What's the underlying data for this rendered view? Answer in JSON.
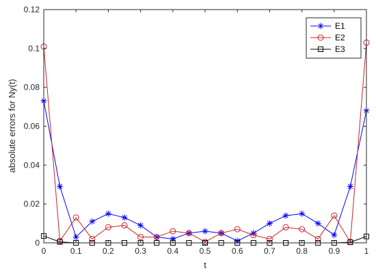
{
  "chart_data": {
    "type": "line",
    "title": "",
    "xlabel": "t",
    "ylabel": "absolute errors for Ny(t)",
    "xlim": [
      0,
      1
    ],
    "ylim": [
      0,
      0.12
    ],
    "x_ticks": [
      0,
      0.1,
      0.2,
      0.3,
      0.4,
      0.5,
      0.6,
      0.7,
      0.8,
      0.9,
      1
    ],
    "x_tick_labels": [
      "0",
      "0.1",
      "0.2",
      "0.3",
      "0.4",
      "0.5",
      "0.6",
      "0.7",
      "0.8",
      "0.9",
      "1"
    ],
    "y_ticks": [
      0,
      0.02,
      0.04,
      0.06,
      0.08,
      0.1,
      0.12
    ],
    "y_tick_labels": [
      "0",
      "0.02",
      "0.04",
      "0.06",
      "0.08",
      "0.1",
      "0.12"
    ],
    "grid": false,
    "legend_position": "top-right",
    "x": [
      0,
      0.05,
      0.1,
      0.15,
      0.2,
      0.25,
      0.3,
      0.35,
      0.4,
      0.45,
      0.5,
      0.55,
      0.6,
      0.65,
      0.7,
      0.75,
      0.8,
      0.85,
      0.9,
      0.95,
      1
    ],
    "series": [
      {
        "name": "E1",
        "color": "#0000ff",
        "marker": "asterisk",
        "values": [
          0.073,
          0.029,
          0.003,
          0.011,
          0.015,
          0.013,
          0.009,
          0.003,
          0.002,
          0.005,
          0.006,
          0.005,
          0.001,
          0.005,
          0.01,
          0.014,
          0.015,
          0.01,
          0.004,
          0.029,
          0.068
        ]
      },
      {
        "name": "E2",
        "color": "#cc2222",
        "marker": "circle",
        "values": [
          0.101,
          0.001,
          0.013,
          0.002,
          0.008,
          0.009,
          0.003,
          0.003,
          0.006,
          0.005,
          0.0005,
          0.005,
          0.007,
          0.004,
          0.002,
          0.008,
          0.007,
          0.002,
          0.014,
          0.0005,
          0.103
        ]
      },
      {
        "name": "E3",
        "color": "#000000",
        "marker": "square",
        "values": [
          0.0035,
          0.0005,
          0,
          0,
          0,
          0,
          0,
          0,
          0,
          0,
          0,
          0,
          0,
          0,
          0,
          0,
          0,
          0,
          0,
          0.0003,
          0.0033
        ]
      }
    ]
  }
}
